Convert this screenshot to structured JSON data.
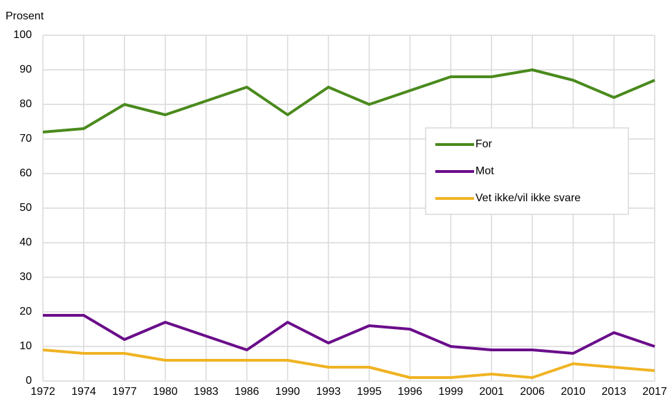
{
  "chart_data": {
    "type": "line",
    "y_label": "Prosent",
    "categories": [
      "1972",
      "1974",
      "1977",
      "1980",
      "1983",
      "1986",
      "1990",
      "1993",
      "1995",
      "1996",
      "1999",
      "2001",
      "2006",
      "2010",
      "2013",
      "2017"
    ],
    "series": [
      {
        "name": "For",
        "color": "#4a8a1c",
        "values": [
          72,
          73,
          80,
          77,
          81,
          85,
          77,
          85,
          80,
          84,
          88,
          88,
          90,
          87,
          82,
          87
        ]
      },
      {
        "name": "Mot",
        "color": "#6a0d8a",
        "values": [
          19,
          19,
          12,
          17,
          13,
          9,
          17,
          11,
          16,
          15,
          10,
          9,
          9,
          8,
          14,
          10
        ]
      },
      {
        "name": "Vet ikke/vil ikke svare",
        "color": "#f0b323",
        "values": [
          9,
          8,
          8,
          6,
          6,
          6,
          6,
          4,
          4,
          1,
          1,
          2,
          1,
          5,
          4,
          3
        ]
      }
    ],
    "ylim": [
      0,
      100
    ],
    "yticks": [
      0,
      10,
      20,
      30,
      40,
      50,
      60,
      70,
      80,
      90,
      100
    ],
    "grid": true,
    "legend": "right"
  }
}
